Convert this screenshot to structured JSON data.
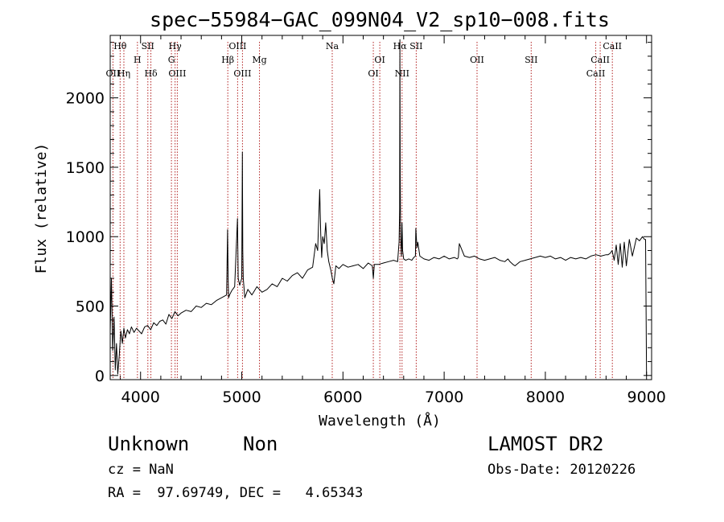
{
  "chart_data": {
    "type": "line",
    "title": "spec−55984−GAC_099N04_V2_sp10−008.fits",
    "xlabel": "Wavelength (Å)",
    "ylabel": "Flux (relative)",
    "xlim": [
      3700,
      9050
    ],
    "ylim": [
      -30,
      2450
    ],
    "xticks": [
      4000,
      5000,
      6000,
      7000,
      8000,
      9000
    ],
    "yticks": [
      0,
      500,
      1000,
      1500,
      2000
    ],
    "grid": false,
    "line_color": "#000000",
    "marker_color": "#b22222",
    "spectrum": {
      "x": [
        3700,
        3712,
        3725,
        3738,
        3750,
        3762,
        3775,
        3790,
        3805,
        3820,
        3835,
        3850,
        3870,
        3890,
        3910,
        3935,
        3960,
        3985,
        4010,
        4040,
        4070,
        4100,
        4130,
        4160,
        4190,
        4220,
        4250,
        4280,
        4310,
        4340,
        4370,
        4400,
        4450,
        4500,
        4550,
        4600,
        4650,
        4700,
        4750,
        4800,
        4850,
        4860,
        4865,
        4870,
        4880,
        4900,
        4930,
        4958,
        4965,
        4980,
        5000,
        5006,
        5010,
        5015,
        5030,
        5060,
        5100,
        5150,
        5200,
        5250,
        5300,
        5350,
        5400,
        5450,
        5500,
        5550,
        5600,
        5650,
        5700,
        5730,
        5750,
        5770,
        5780,
        5790,
        5800,
        5815,
        5830,
        5845,
        5860,
        5880,
        5895,
        5910,
        5930,
        5960,
        6000,
        6050,
        6100,
        6150,
        6200,
        6250,
        6290,
        6300,
        6310,
        6350,
        6400,
        6450,
        6500,
        6540,
        6548,
        6555,
        6560,
        6563,
        6566,
        6570,
        6578,
        6584,
        6590,
        6600,
        6620,
        6650,
        6680,
        6700,
        6716,
        6720,
        6731,
        6740,
        6760,
        6800,
        6850,
        6900,
        6950,
        7000,
        7050,
        7100,
        7130,
        7140,
        7150,
        7200,
        7250,
        7300,
        7350,
        7400,
        7450,
        7500,
        7550,
        7600,
        7630,
        7650,
        7680,
        7700,
        7750,
        7800,
        7850,
        7900,
        7950,
        8000,
        8050,
        8100,
        8150,
        8200,
        8250,
        8300,
        8350,
        8400,
        8450,
        8500,
        8550,
        8600,
        8620,
        8640,
        8660,
        8680,
        8700,
        8720,
        8740,
        8760,
        8780,
        8800,
        8830,
        8860,
        8900,
        8930,
        8960,
        8980,
        8990,
        8995,
        9000
      ],
      "y": [
        310,
        700,
        180,
        420,
        40,
        230,
        10,
        150,
        320,
        230,
        340,
        270,
        330,
        300,
        350,
        310,
        340,
        320,
        300,
        350,
        360,
        330,
        380,
        360,
        390,
        400,
        370,
        440,
        410,
        460,
        430,
        450,
        470,
        460,
        500,
        490,
        520,
        510,
        540,
        560,
        580,
        1050,
        700,
        560,
        580,
        610,
        640,
        1130,
        700,
        650,
        700,
        1610,
        900,
        700,
        560,
        620,
        580,
        640,
        600,
        620,
        660,
        640,
        700,
        680,
        720,
        740,
        700,
        760,
        780,
        950,
        900,
        1340,
        1020,
        850,
        1000,
        950,
        1100,
        900,
        820,
        760,
        700,
        660,
        790,
        770,
        800,
        780,
        790,
        800,
        770,
        810,
        790,
        700,
        800,
        800,
        810,
        820,
        830,
        820,
        900,
        960,
        1200,
        2420,
        1450,
        1000,
        860,
        1100,
        900,
        840,
        830,
        840,
        830,
        850,
        860,
        1060,
        920,
        960,
        860,
        840,
        830,
        850,
        840,
        860,
        840,
        850,
        840,
        850,
        950,
        860,
        850,
        860,
        840,
        830,
        840,
        850,
        830,
        820,
        840,
        820,
        800,
        790,
        820,
        830,
        840,
        850,
        860,
        850,
        860,
        840,
        850,
        830,
        850,
        840,
        850,
        840,
        860,
        870,
        860,
        870,
        870,
        880,
        900,
        830,
        940,
        800,
        950,
        780,
        960,
        790,
        980,
        860,
        990,
        970,
        1000,
        980,
        980,
        500,
        0
      ]
    },
    "lines": [
      {
        "label": "Hθ",
        "x": 3798,
        "row": 0
      },
      {
        "label": "OII",
        "x": 3727,
        "row": 2
      },
      {
        "label": "Hη",
        "x": 3835,
        "row": 2
      },
      {
        "label": "H",
        "x": 3969,
        "row": 1
      },
      {
        "label": "SII",
        "x": 4072,
        "row": 0
      },
      {
        "label": "Hδ",
        "x": 4102,
        "row": 2
      },
      {
        "label": "Hγ",
        "x": 4341,
        "row": 0
      },
      {
        "label": "G",
        "x": 4305,
        "row": 1
      },
      {
        "label": "OIII",
        "x": 4363,
        "row": 2
      },
      {
        "label": "OIII",
        "x": 4959,
        "row": 0
      },
      {
        "label": "Hβ",
        "x": 4862,
        "row": 1
      },
      {
        "label": "OIII",
        "x": 5007,
        "row": 2
      },
      {
        "label": "Mg",
        "x": 5175,
        "row": 1
      },
      {
        "label": "Na",
        "x": 5894,
        "row": 0
      },
      {
        "label": "OI",
        "x": 6364,
        "row": 1
      },
      {
        "label": "OI",
        "x": 6300,
        "row": 2
      },
      {
        "label": "Hα",
        "x": 6563,
        "row": 0
      },
      {
        "label": "SII",
        "x": 6724,
        "row": 0
      },
      {
        "label": "NII",
        "x": 6584,
        "row": 2
      },
      {
        "label": "OII",
        "x": 7325,
        "row": 1
      },
      {
        "label": "SII",
        "x": 7860,
        "row": 1
      },
      {
        "label": "CaII",
        "x": 8662,
        "row": 0
      },
      {
        "label": "CaII",
        "x": 8542,
        "row": 1
      },
      {
        "label": "CaII",
        "x": 8498,
        "row": 2
      }
    ],
    "markers": [
      3727,
      3798,
      3835,
      3969,
      4072,
      4102,
      4305,
      4341,
      4363,
      4862,
      4959,
      5007,
      5175,
      5894,
      6300,
      6364,
      6563,
      6584,
      6724,
      7325,
      7860,
      8498,
      8542,
      8662
    ]
  },
  "info": {
    "class_name": "Unknown",
    "subclass": "Non",
    "survey": "LAMOST DR2",
    "cz": "cz = NaN",
    "obs_date": "Obs-Date: 20120226",
    "coords": "RA =  97.69749, DEC =   4.65343"
  }
}
